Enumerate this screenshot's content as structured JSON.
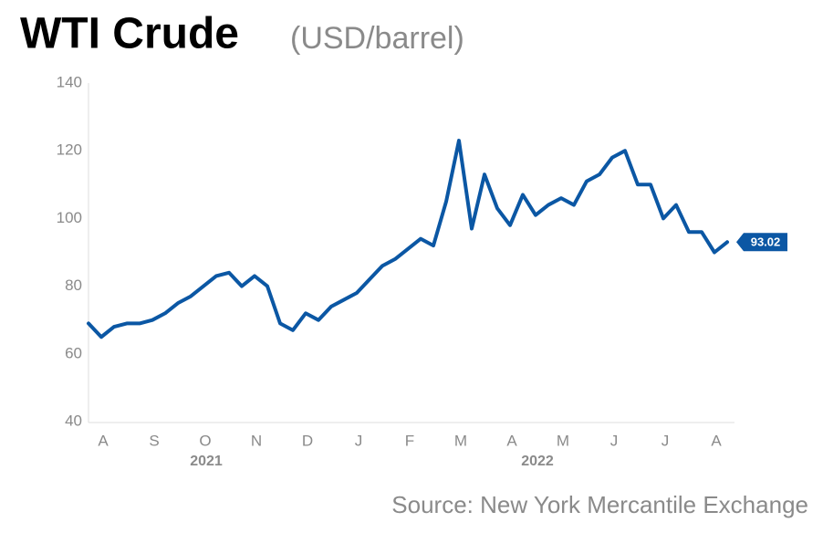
{
  "chart_data": {
    "type": "line",
    "title": "WTI Crude",
    "subtitle": "(USD/barrel)",
    "source": "Source: New York Mercantile Exchange",
    "categories": [
      null,
      "A",
      null,
      null,
      null,
      "S",
      null,
      null,
      null,
      "O",
      null,
      null,
      null,
      "N",
      null,
      null,
      null,
      "D",
      null,
      null,
      null,
      "J",
      null,
      null,
      null,
      "F",
      null,
      null,
      null,
      "M",
      null,
      null,
      null,
      "A",
      null,
      null,
      null,
      "M",
      null,
      null,
      null,
      "J",
      null,
      null,
      null,
      "J",
      null,
      null,
      null,
      "A",
      null
    ],
    "years": [
      "2021",
      "2022"
    ],
    "series": [
      {
        "name": "WTI Crude",
        "color": "#0b57a4",
        "values": [
          69,
          65,
          68,
          69,
          69,
          70,
          72,
          75,
          77,
          80,
          83,
          84,
          80,
          83,
          80,
          69,
          67,
          72,
          70,
          74,
          76,
          78,
          82,
          86,
          88,
          91,
          94,
          92,
          105,
          123,
          97,
          113,
          103,
          98,
          107,
          101,
          104,
          106,
          104,
          111,
          113,
          118,
          120,
          110,
          110,
          100,
          104,
          96,
          96,
          90,
          93.02
        ]
      }
    ],
    "ylim": [
      40,
      140
    ],
    "yticks": [
      40,
      60,
      80,
      100,
      120,
      140
    ]
  }
}
